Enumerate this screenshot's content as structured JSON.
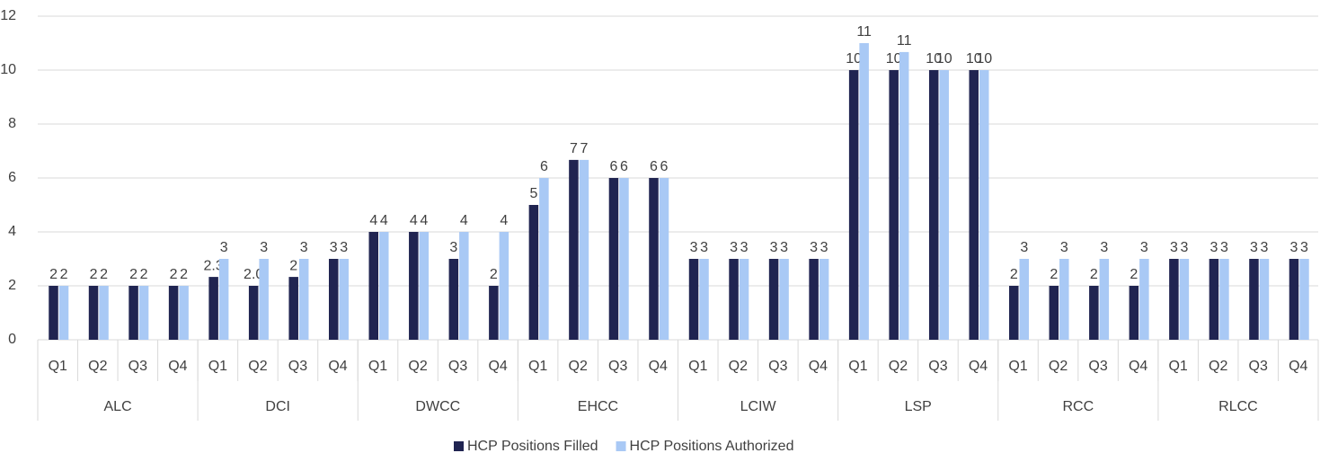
{
  "chart_data": {
    "type": "bar",
    "categories": [
      "Q1",
      "Q2",
      "Q3",
      "Q4",
      "Q1",
      "Q2",
      "Q3",
      "Q4",
      "Q1",
      "Q2",
      "Q3",
      "Q4",
      "Q1",
      "Q2",
      "Q3",
      "Q4",
      "Q1",
      "Q2",
      "Q3",
      "Q4",
      "Q1",
      "Q2",
      "Q3",
      "Q4",
      "Q1",
      "Q2",
      "Q3",
      "Q4",
      "Q1",
      "Q2",
      "Q3",
      "Q4"
    ],
    "category_groups": [
      "ALC",
      "DCI",
      "DWCC",
      "EHCC",
      "LCIW",
      "LSP",
      "RCC",
      "RLCC"
    ],
    "series": [
      {
        "name": "HCP Positions Filled",
        "color": "#202451",
        "values": [
          2,
          2,
          2,
          2,
          2.33,
          2,
          2.33,
          3,
          4,
          4,
          3,
          2,
          5,
          6.67,
          6,
          6,
          3,
          3,
          3,
          3,
          10,
          10,
          10,
          10,
          2,
          2,
          2,
          2,
          3,
          3,
          3,
          3
        ],
        "value_labels": [
          "2",
          "2",
          "2",
          "2",
          "2.3",
          "2.0",
          "2",
          "3",
          "4",
          "4",
          "3",
          "2",
          "5",
          "7",
          "6",
          "6",
          "3",
          "3",
          "3",
          "3",
          "10",
          "10",
          "10",
          "10",
          "2",
          "2",
          "2",
          "2",
          "3",
          "3",
          "3",
          "3"
        ]
      },
      {
        "name": "HCP Positions Authorized",
        "color": "#a9c9f5",
        "values": [
          2,
          2,
          2,
          2,
          3,
          3,
          3,
          3,
          4,
          4,
          4,
          4,
          6,
          6.67,
          6,
          6,
          3,
          3,
          3,
          3,
          11,
          10.67,
          10,
          10,
          3,
          3,
          3,
          3,
          3,
          3,
          3,
          3
        ],
        "value_labels": [
          "2",
          "2",
          "2",
          "2",
          "3",
          "3",
          "3",
          "3",
          "4",
          "4",
          "4",
          "4",
          "6",
          "7",
          "6",
          "6",
          "3",
          "3",
          "3",
          "3",
          "11",
          "11",
          "10",
          "10",
          "3",
          "3",
          "3",
          "3",
          "3",
          "3",
          "3",
          "3"
        ]
      }
    ],
    "ylim": [
      0,
      12
    ],
    "yticks": [
      0,
      2,
      4,
      6,
      8,
      10,
      12
    ],
    "grid": true,
    "legend": "bottom"
  }
}
